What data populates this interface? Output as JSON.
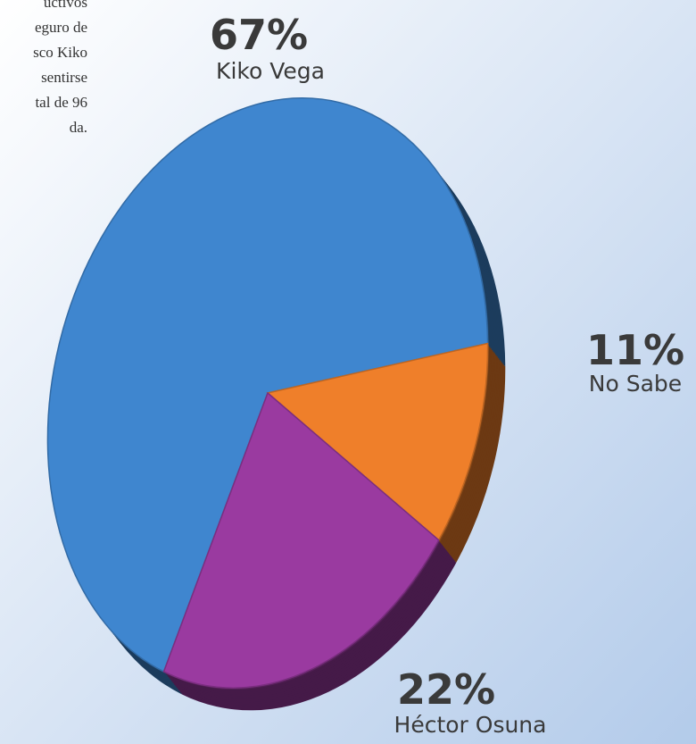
{
  "chart_data": {
    "type": "pie",
    "annotations": [
      "uctivos",
      "eguro de",
      "sco  Kiko",
      "sentirse",
      "tal de 96",
      "da."
    ],
    "categories": [
      "Kiko Vega",
      "No Sabe",
      "Héctor Osuna"
    ],
    "values": [
      67,
      11,
      22
    ],
    "value_labels": [
      "67%",
      "11%",
      "22%"
    ],
    "colors": [
      "#3f86cf",
      "#ef7f2a",
      "#9a3aa0"
    ]
  }
}
